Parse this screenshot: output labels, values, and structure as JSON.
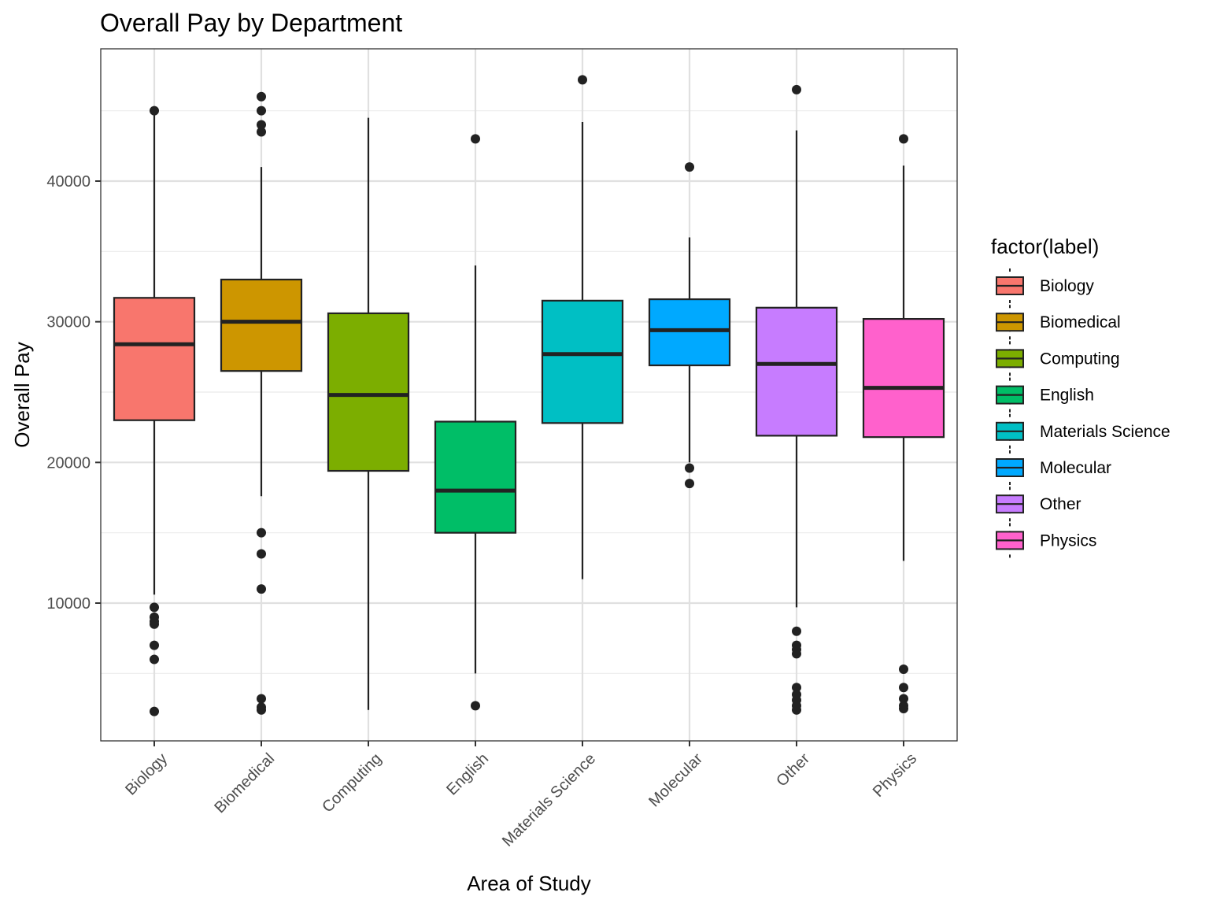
{
  "chart_data": {
    "type": "boxplot",
    "title": "Overall Pay by Department",
    "xlabel": "Area of Study",
    "ylabel": "Overall Pay",
    "ylim": [
      0,
      49000
    ],
    "y_ticks": [
      10000,
      20000,
      30000,
      40000
    ],
    "y_tick_labels": [
      "10000",
      "20000",
      "30000",
      "40000"
    ],
    "grid": true,
    "legend": {
      "title": "factor(label)",
      "position": "right",
      "entries": [
        "Biology",
        "Biomedical",
        "Computing",
        "English",
        "Materials Science",
        "Molecular",
        "Other",
        "Physics"
      ]
    },
    "categories": [
      "Biology",
      "Biomedical",
      "Computing",
      "English",
      "Materials Science",
      "Molecular",
      "Other",
      "Physics"
    ],
    "boxes": [
      {
        "name": "Biology",
        "color": "#F8766D",
        "whisker_low": 10600,
        "q1": 23000,
        "median": 28400,
        "q3": 31700,
        "whisker_high": 45000,
        "outliers": [
          45000,
          9700,
          9000,
          8700,
          8500,
          7000,
          6000,
          2300
        ]
      },
      {
        "name": "Biomedical",
        "color": "#CD9600",
        "whisker_low": 17600,
        "q1": 26500,
        "median": 30000,
        "q3": 33000,
        "whisker_high": 41000,
        "outliers": [
          46000,
          45000,
          44000,
          43500,
          15000,
          13500,
          11000,
          3200,
          2600,
          2400
        ]
      },
      {
        "name": "Computing",
        "color": "#7CAE00",
        "whisker_low": 2400,
        "q1": 19400,
        "median": 24800,
        "q3": 30600,
        "whisker_high": 44500,
        "outliers": []
      },
      {
        "name": "English",
        "color": "#00BE67",
        "whisker_low": 5000,
        "q1": 15000,
        "median": 18000,
        "q3": 22900,
        "whisker_high": 34000,
        "outliers": [
          43000,
          2700
        ]
      },
      {
        "name": "Materials Science",
        "color": "#00BFC4",
        "whisker_low": 11700,
        "q1": 22800,
        "median": 27700,
        "q3": 31500,
        "whisker_high": 44200,
        "outliers": [
          47200
        ]
      },
      {
        "name": "Molecular",
        "color": "#00A9FF",
        "whisker_low": 20000,
        "q1": 26900,
        "median": 29400,
        "q3": 31600,
        "whisker_high": 36000,
        "outliers": [
          41000,
          19600,
          18500
        ]
      },
      {
        "name": "Other",
        "color": "#C77CFF",
        "whisker_low": 9700,
        "q1": 21900,
        "median": 27000,
        "q3": 31000,
        "whisker_high": 43600,
        "outliers": [
          46500,
          8000,
          7000,
          6700,
          6400,
          4000,
          3500,
          3100,
          2700,
          2400
        ]
      },
      {
        "name": "Physics",
        "color": "#FF61CC",
        "whisker_low": 13000,
        "q1": 21800,
        "median": 25300,
        "q3": 30200,
        "whisker_high": 41100,
        "outliers": [
          43000,
          5300,
          4000,
          3200,
          2700,
          2500
        ]
      }
    ]
  }
}
